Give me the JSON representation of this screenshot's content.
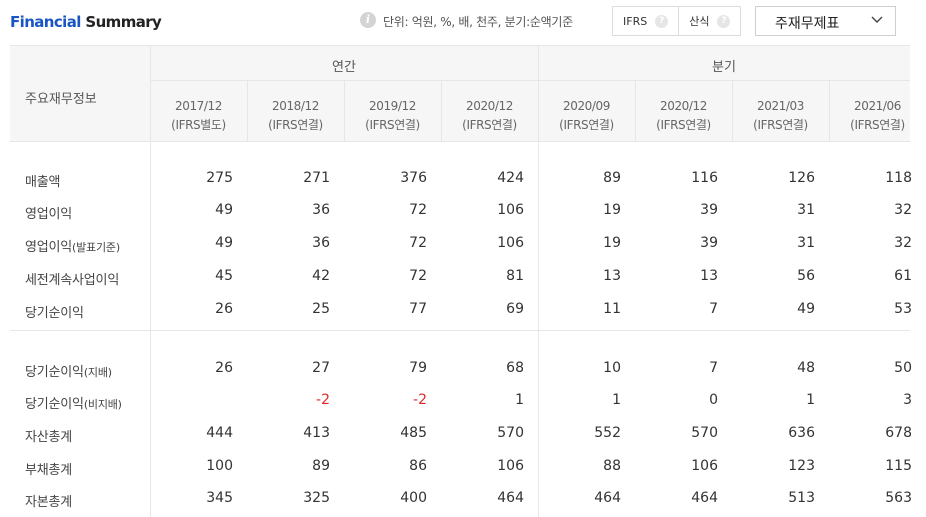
{
  "header": {
    "title_accent": "Financial",
    "title_rest": " Summary",
    "info_icon": "info-icon",
    "unit_text": "단위: 억원, %, 배, 천주, 분기:순액기준",
    "toggle": [
      {
        "label": "IFRS",
        "help": "?"
      },
      {
        "label": "산식",
        "help": "?"
      }
    ],
    "dropdown_label": "주재무제표"
  },
  "table": {
    "corner_label": "주요재무정보",
    "groups": [
      "연간",
      "분기"
    ],
    "columns": [
      {
        "period": "2017/12",
        "basis": "(IFRS별도)"
      },
      {
        "period": "2018/12",
        "basis": "(IFRS연결)"
      },
      {
        "period": "2019/12",
        "basis": "(IFRS연결)"
      },
      {
        "period": "2020/12",
        "basis": "(IFRS연결)"
      },
      {
        "period": "2020/09",
        "basis": "(IFRS연결)"
      },
      {
        "period": "2020/12",
        "basis": "(IFRS연결)"
      },
      {
        "period": "2021/03",
        "basis": "(IFRS연결)"
      },
      {
        "period": "2021/06",
        "basis": "(IFRS연결)"
      }
    ],
    "rows": [
      {
        "label": "매출액",
        "sub": "",
        "values": [
          "275",
          "271",
          "376",
          "424",
          "89",
          "116",
          "126",
          "118"
        ]
      },
      {
        "label": "영업이익",
        "sub": "",
        "values": [
          "49",
          "36",
          "72",
          "106",
          "19",
          "39",
          "31",
          "32"
        ]
      },
      {
        "label": "영업이익",
        "sub": "(발표기준)",
        "values": [
          "49",
          "36",
          "72",
          "106",
          "19",
          "39",
          "31",
          "32"
        ]
      },
      {
        "label": "세전계속사업이익",
        "sub": "",
        "values": [
          "45",
          "42",
          "72",
          "81",
          "13",
          "13",
          "56",
          "61"
        ]
      },
      {
        "label": "당기순이익",
        "sub": "",
        "values": [
          "26",
          "25",
          "77",
          "69",
          "11",
          "7",
          "49",
          "53"
        ]
      },
      {
        "label": "당기순이익",
        "sub": "(지배)",
        "values": [
          "26",
          "27",
          "79",
          "68",
          "10",
          "7",
          "48",
          "50"
        ]
      },
      {
        "label": "당기순이익",
        "sub": "(비지배)",
        "values": [
          "",
          "-2",
          "-2",
          "1",
          "1",
          "0",
          "1",
          "3"
        ]
      },
      {
        "label": "자산총계",
        "sub": "",
        "values": [
          "444",
          "413",
          "485",
          "570",
          "552",
          "570",
          "636",
          "678"
        ]
      },
      {
        "label": "부채총계",
        "sub": "",
        "values": [
          "100",
          "89",
          "86",
          "106",
          "88",
          "106",
          "123",
          "115"
        ]
      },
      {
        "label": "자본총계",
        "sub": "",
        "values": [
          "345",
          "325",
          "400",
          "464",
          "464",
          "464",
          "513",
          "563"
        ]
      }
    ]
  },
  "colors": {
    "accent": "#1a55c6",
    "negative": "#e02828"
  }
}
